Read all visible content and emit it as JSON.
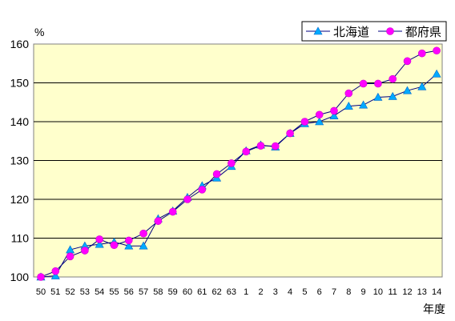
{
  "chart_data": {
    "type": "line",
    "y_unit_label": "%",
    "x_unit_label": "年度",
    "ylim": [
      100,
      160
    ],
    "yticks": [
      100,
      110,
      120,
      130,
      140,
      150,
      160
    ],
    "grid": true,
    "legend_position": "top-right",
    "categories": [
      "50",
      "51",
      "52",
      "53",
      "54",
      "55",
      "56",
      "57",
      "58",
      "59",
      "60",
      "61",
      "62",
      "63",
      "1",
      "2",
      "3",
      "4",
      "5",
      "6",
      "7",
      "8",
      "9",
      "10",
      "11",
      "12",
      "13",
      "14"
    ],
    "series": [
      {
        "name": "北海道",
        "marker": "triangle",
        "color": "#00aaff",
        "values": [
          100,
          100.3,
          107,
          108,
          108.4,
          109,
          108,
          108,
          115,
          117,
          120.5,
          123.5,
          125.5,
          128.5,
          132.5,
          134,
          133.5,
          137,
          139.5,
          140,
          141.5,
          144,
          144.3,
          146.3,
          146.5,
          148,
          149,
          152.3
        ]
      },
      {
        "name": "都府県",
        "marker": "circle",
        "color": "#ff00ff",
        "values": [
          100,
          101.5,
          105.3,
          106.8,
          109.7,
          108.2,
          109.4,
          111.2,
          114.4,
          116.8,
          120,
          122.5,
          126.5,
          129.3,
          132.3,
          133.8,
          133.7,
          137,
          140,
          141.8,
          142.8,
          147.3,
          149.8,
          149.8,
          151,
          155.6,
          157.6,
          158.3
        ]
      }
    ]
  }
}
